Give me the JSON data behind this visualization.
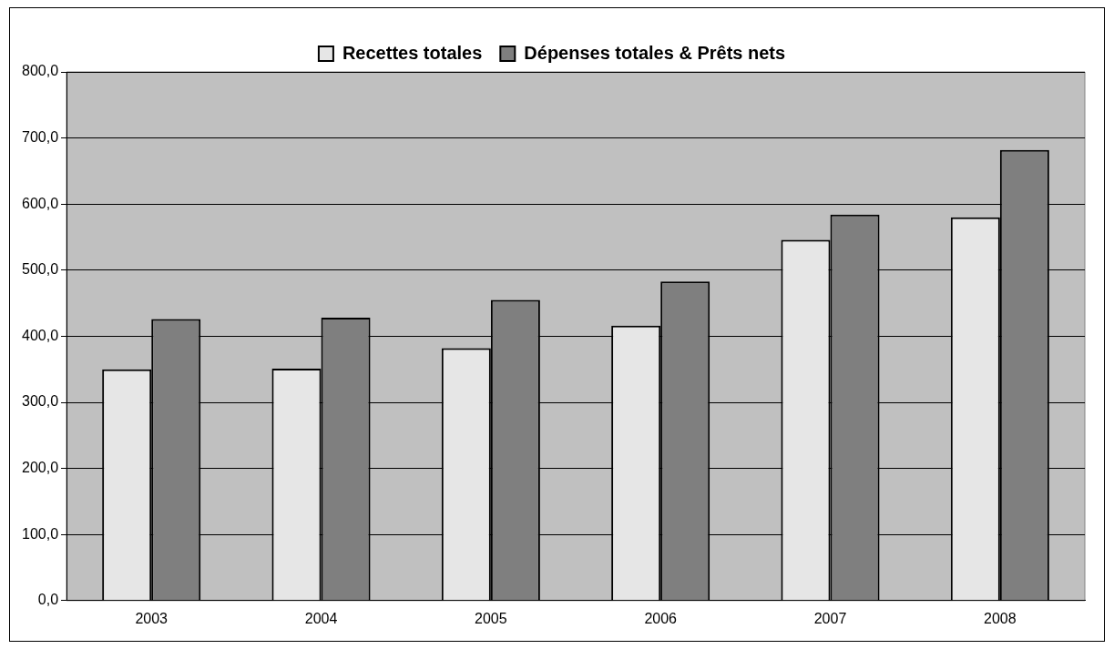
{
  "chart_data": {
    "type": "bar",
    "categories": [
      "2003",
      "2004",
      "2005",
      "2006",
      "2007",
      "2008"
    ],
    "series": [
      {
        "name": "Recettes totales",
        "color": "#e6e6e6",
        "values": [
          350,
          351,
          382,
          416,
          546,
          580
        ]
      },
      {
        "name": "Dépenses totales & Prêts nets",
        "color": "#7f7f7f",
        "values": [
          426,
          428,
          455,
          483,
          584,
          682
        ]
      }
    ],
    "ylim": [
      0,
      800
    ],
    "yticks": [
      {
        "value": 0,
        "label": "0,0"
      },
      {
        "value": 100,
        "label": "100,0"
      },
      {
        "value": 200,
        "label": "200,0"
      },
      {
        "value": 300,
        "label": "300,0"
      },
      {
        "value": 400,
        "label": "400,0"
      },
      {
        "value": 500,
        "label": "500,0"
      },
      {
        "value": 600,
        "label": "600,0"
      },
      {
        "value": 700,
        "label": "700,0"
      },
      {
        "value": 800,
        "label": "800,0"
      }
    ],
    "grid": "y",
    "legend": "top"
  }
}
